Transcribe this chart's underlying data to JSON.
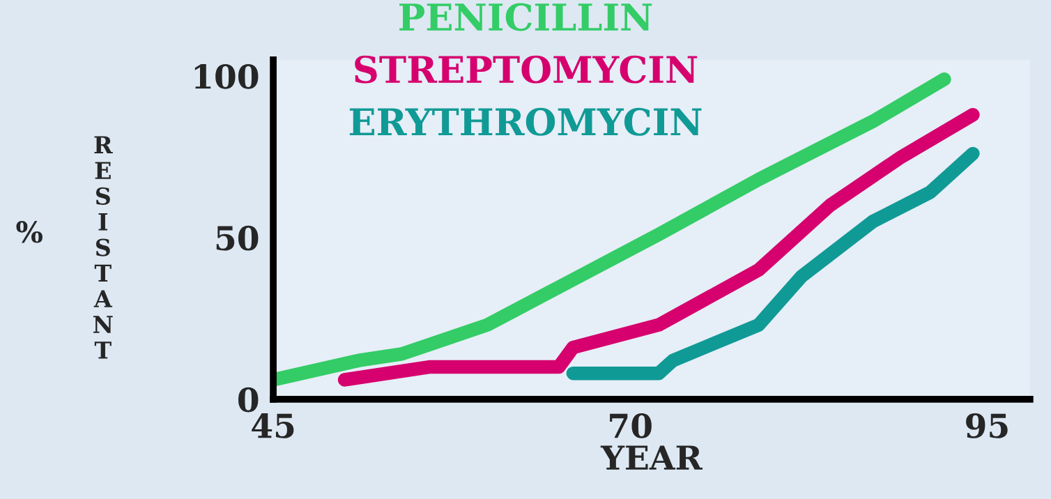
{
  "chart_data": {
    "type": "line",
    "xlabel": "YEAR",
    "ylabel": "% RESISTANT",
    "xlim": [
      45,
      98
    ],
    "ylim": [
      0,
      105
    ],
    "xticks": [
      45,
      70,
      95
    ],
    "yticks": [
      0,
      50,
      100
    ],
    "grid": false,
    "legend": "top",
    "line_style": "solid",
    "marker": "none",
    "series": [
      {
        "name": "PENICILLIN",
        "color": "#33cc66",
        "x": [
          45,
          51,
          54,
          60,
          66,
          72,
          79,
          87,
          92
        ],
        "values": [
          6,
          12,
          14,
          23,
          37,
          51,
          68,
          86,
          99
        ]
      },
      {
        "name": "STREPTOMYCIN",
        "color": "#d6006e",
        "x": [
          50,
          56,
          65,
          66,
          72,
          79,
          84,
          89,
          94
        ],
        "values": [
          6,
          10,
          10,
          16,
          23,
          40,
          60,
          75,
          88
        ]
      },
      {
        "name": "ERYTHROMYCIN",
        "color": "#109a96",
        "x": [
          66,
          72,
          73,
          79,
          82,
          87,
          91,
          94
        ],
        "values": [
          8,
          8,
          12,
          23,
          38,
          55,
          64,
          76
        ]
      }
    ]
  }
}
